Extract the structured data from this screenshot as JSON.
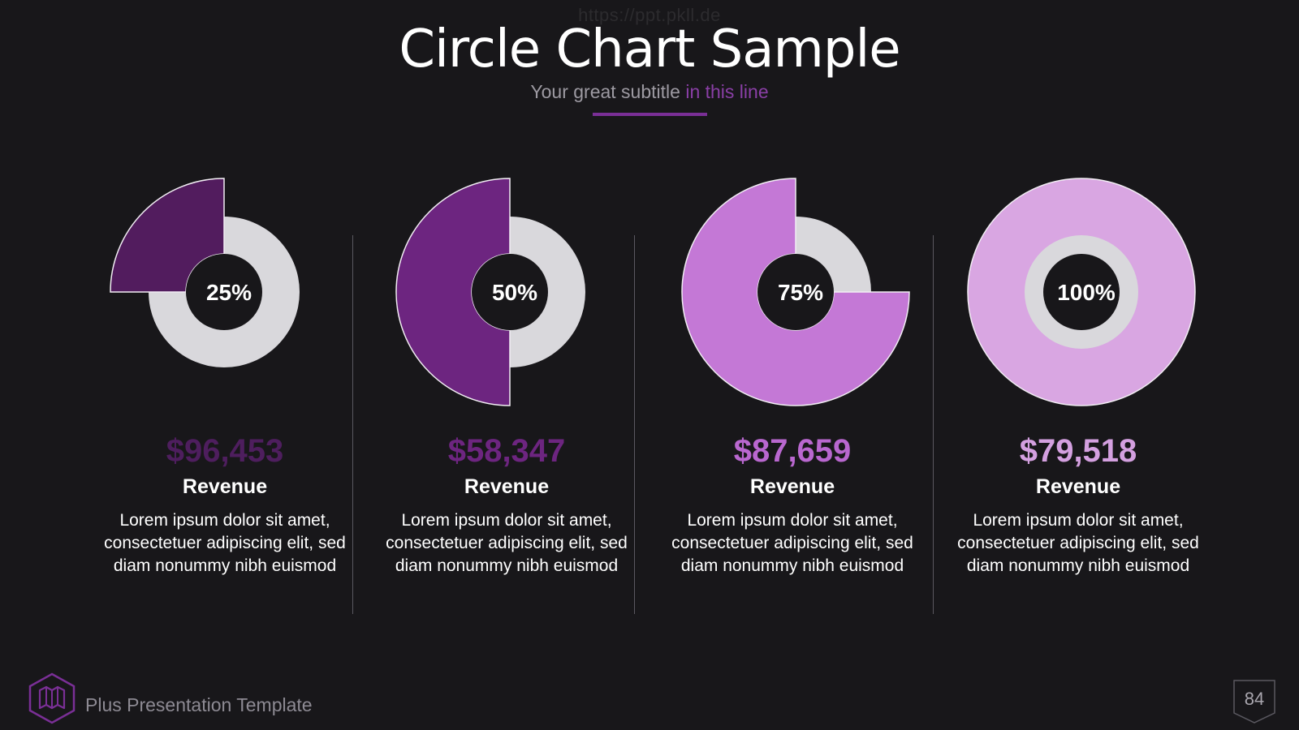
{
  "watermark": "https://ppt.pkll.de",
  "header": {
    "title": "Circle Chart Sample",
    "subtitle_plain": "Your great subtitle",
    "subtitle_accent": "in this line"
  },
  "colors": {
    "background": "#18171a",
    "ring_base": "#d9d8dc",
    "accent_1": "#521c5e",
    "accent_2": "#6d2580",
    "accent_3": "#c478d6",
    "accent_4": "#d9a6e2",
    "amount_1": "#4e1e5e",
    "amount_2": "#6d2580",
    "amount_3": "#b967cf",
    "amount_4": "#d4a0e0"
  },
  "chart_data": {
    "type": "pie",
    "categories": [
      "25%",
      "50%",
      "75%",
      "100%"
    ],
    "values": [
      25,
      50,
      75,
      100
    ],
    "amounts": [
      "$96,453",
      "$58,347",
      "$87,659",
      "$79,518"
    ],
    "metric_label": "Revenue",
    "description": "Lorem ipsum dolor sit amet, consectetuer adipiscing elit, sed diam nonummy nibh euismod"
  },
  "footer": {
    "brand": "Plus Presentation Template",
    "page_number": "84",
    "brand_icon": "map-icon"
  }
}
